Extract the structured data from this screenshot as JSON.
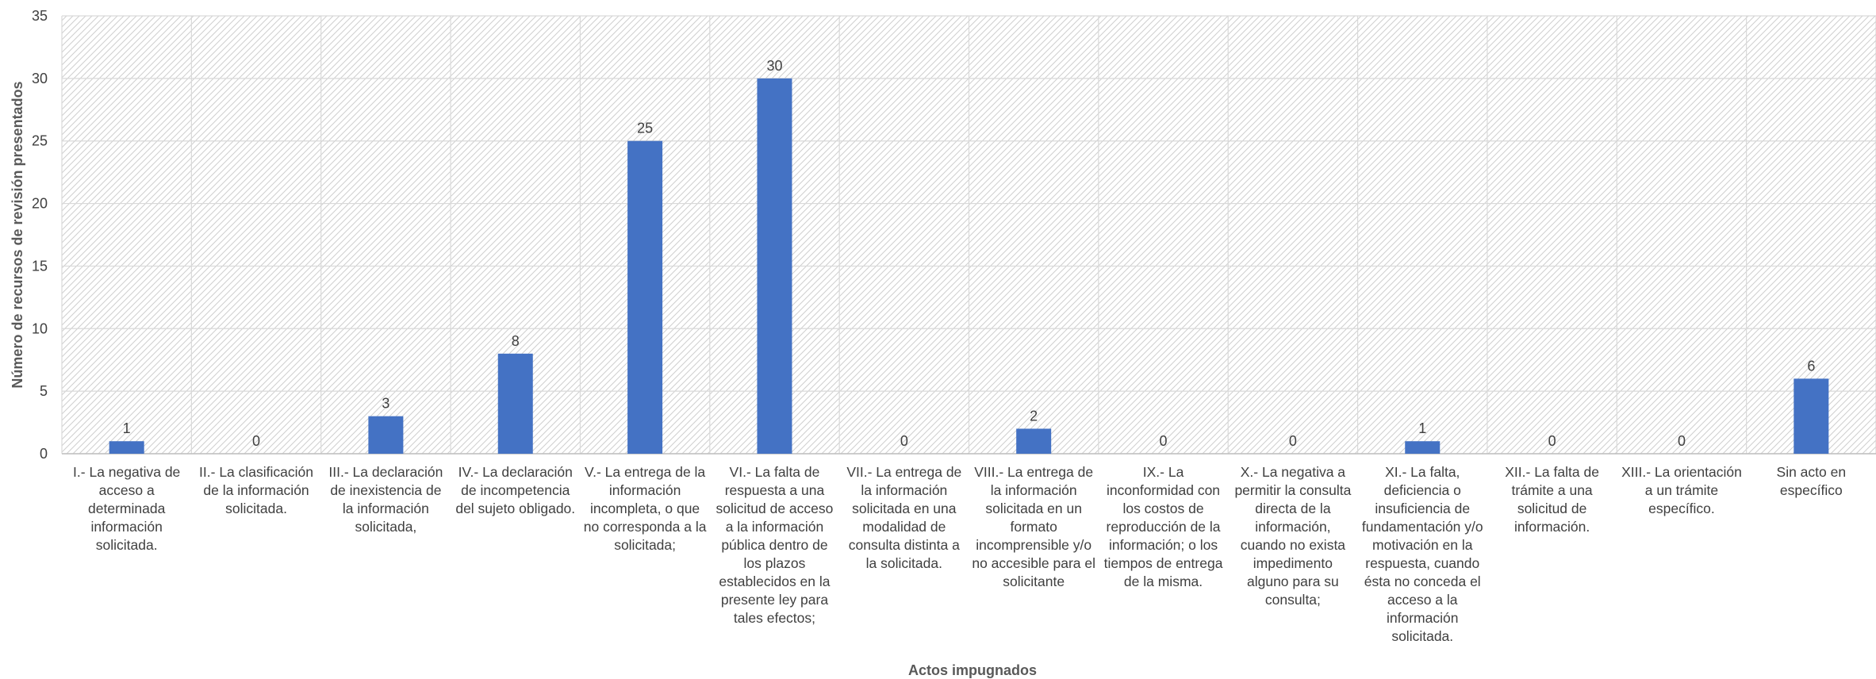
{
  "chart_data": {
    "type": "bar",
    "title": "",
    "xlabel": "Actos impugnados",
    "ylabel": "Número de recursos de revisión presentados",
    "ylim": [
      0,
      35
    ],
    "yticks": [
      0,
      5,
      10,
      15,
      20,
      25,
      30,
      35
    ],
    "grid": true,
    "legend": "none",
    "bar_color": "#4472C4",
    "categories": [
      "I.- La negativa de acceso a determinada información solicitada.",
      "II.- La clasificación de la información solicitada.",
      "III.- La declaración de inexistencia de la información solicitada,",
      "IV.- La declaración de incompetencia del sujeto obligado.",
      "V.- La entrega de la información incompleta, o que no corresponda a la solicitada;",
      "VI.- La falta de respuesta a una solicitud de acceso a la información pública dentro de los plazos establecidos en la presente ley para tales efectos;",
      "VII.- La entrega de la información solicitada en una modalidad de consulta distinta a la solicitada.",
      "VIII.- La entrega de la información solicitada en un formato incomprensible y/o no accesible para el solicitante",
      "IX.- La inconformidad con los costos de reproducción de la información; o los tiempos de entrega de la misma.",
      "X.- La negativa a permitir la consulta directa de la información, cuando no exista impedimento alguno para su consulta;",
      "XI.- La falta, deficiencia o insuficiencia de fundamentación y/o motivación en la respuesta, cuando ésta no conceda el acceso a la información solicitada.",
      "XII.- La falta de trámite a una solicitud de información.",
      "XIII.- La orientación a un trámite específico.",
      "Sin acto en específico"
    ],
    "values": [
      1,
      0,
      3,
      8,
      25,
      30,
      0,
      2,
      0,
      0,
      1,
      0,
      0,
      6
    ]
  }
}
